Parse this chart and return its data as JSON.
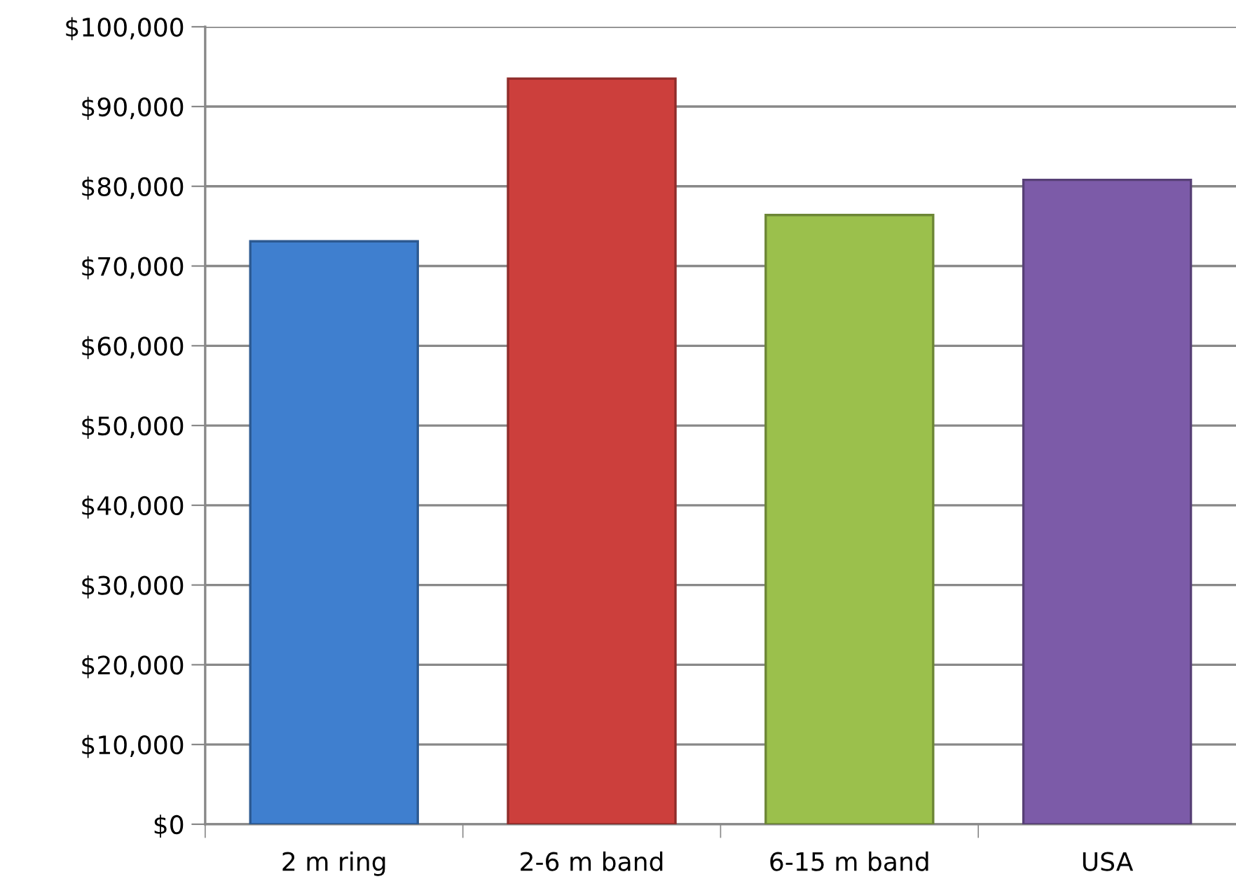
{
  "chart_data": {
    "type": "bar",
    "categories": [
      "2 m ring",
      "2-6 m band",
      "6-15 m band",
      "USA"
    ],
    "values": [
      73100,
      93500,
      76400,
      80800
    ],
    "colors": [
      "#3f7fcf",
      "#cc3f3c",
      "#9bc04c",
      "#7c5ba8"
    ],
    "ylim": [
      0,
      100000
    ],
    "yticks": [
      {
        "value": 0,
        "label": "$0"
      },
      {
        "value": 10000,
        "label": "$10,000"
      },
      {
        "value": 20000,
        "label": "$20,000"
      },
      {
        "value": 30000,
        "label": "$30,000"
      },
      {
        "value": 40000,
        "label": "$40,000"
      },
      {
        "value": 50000,
        "label": "$50,000"
      },
      {
        "value": 60000,
        "label": "$60,000"
      },
      {
        "value": 70000,
        "label": "$70,000"
      },
      {
        "value": 80000,
        "label": "$80,000"
      },
      {
        "value": 90000,
        "label": "$90,000"
      },
      {
        "value": 100000,
        "label": "$100,000"
      }
    ],
    "grid": "y",
    "legend": false
  }
}
